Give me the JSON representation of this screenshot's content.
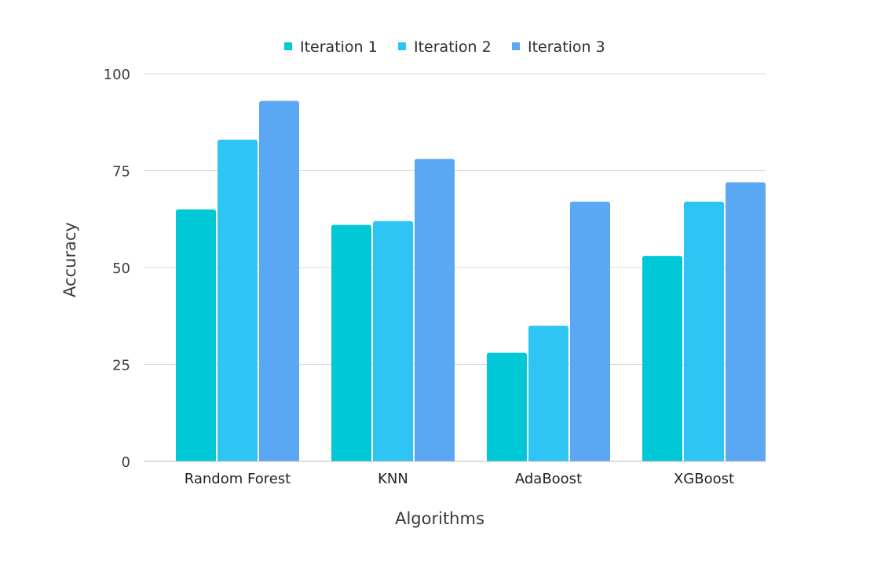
{
  "chart_data": {
    "type": "bar",
    "categories": [
      "Random Forest",
      "KNN",
      "AdaBoost",
      "XGBoost"
    ],
    "series": [
      {
        "name": "Iteration 1",
        "color": "#00c8d7",
        "values": [
          65,
          61,
          28,
          53
        ]
      },
      {
        "name": "Iteration 2",
        "color": "#2ec5f5",
        "values": [
          83,
          62,
          35,
          67
        ]
      },
      {
        "name": "Iteration 3",
        "color": "#5aa7f4",
        "values": [
          93,
          78,
          67,
          72
        ]
      }
    ],
    "xlabel": "Algorithms",
    "ylabel": "Accuracy",
    "ylim": [
      0,
      100
    ],
    "yticks": [
      0,
      25,
      50,
      75,
      100
    ],
    "grid": true,
    "legend_position": "top"
  }
}
